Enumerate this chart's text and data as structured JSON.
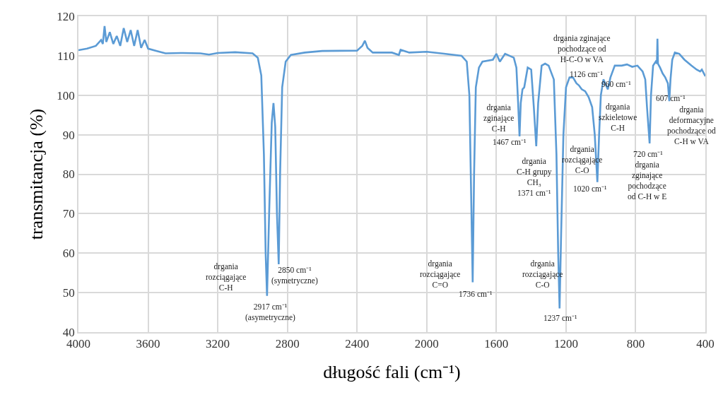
{
  "chart_data": {
    "type": "line",
    "xlabel": "długość fali (cm⁻¹)",
    "ylabel": "transmitancja (%)",
    "xlim": [
      4000,
      400
    ],
    "xticks": [
      4000,
      3600,
      3200,
      2800,
      2400,
      2000,
      1600,
      1200,
      800,
      400
    ],
    "ylim": [
      40,
      120
    ],
    "yticks": [
      40,
      50,
      60,
      70,
      80,
      90,
      100,
      110,
      120
    ],
    "grid": true,
    "series": [
      {
        "color": "#5b9bd5",
        "x": [
          4000,
          3950,
          3900,
          3870,
          3860,
          3850,
          3840,
          3820,
          3800,
          3780,
          3760,
          3740,
          3720,
          3700,
          3680,
          3660,
          3640,
          3620,
          3600,
          3550,
          3500,
          3400,
          3300,
          3250,
          3200,
          3100,
          3000,
          2970,
          2950,
          2935,
          2925,
          2917,
          2905,
          2890,
          2880,
          2870,
          2860,
          2850,
          2842,
          2830,
          2810,
          2780,
          2700,
          2600,
          2400,
          2370,
          2355,
          2340,
          2310,
          2200,
          2160,
          2150,
          2100,
          2000,
          1900,
          1800,
          1770,
          1755,
          1745,
          1736,
          1728,
          1718,
          1700,
          1680,
          1620,
          1600,
          1580,
          1550,
          1500,
          1485,
          1475,
          1467,
          1460,
          1450,
          1440,
          1420,
          1400,
          1385,
          1371,
          1360,
          1340,
          1320,
          1300,
          1270,
          1255,
          1245,
          1237,
          1228,
          1215,
          1200,
          1180,
          1160,
          1140,
          1126,
          1110,
          1090,
          1070,
          1050,
          1035,
          1020,
          1010,
          1000,
          985,
          970,
          960,
          945,
          920,
          880,
          850,
          820,
          790,
          760,
          745,
          735,
          720,
          712,
          700,
          685,
          678,
          675,
          672,
          660,
          645,
          630,
          615,
          607,
          600,
          590,
          575,
          550,
          520,
          480,
          450,
          430,
          420,
          400
        ],
        "values": [
          111.4,
          111.8,
          112.5,
          114,
          113,
          117.5,
          113.5,
          116,
          113,
          115,
          112.5,
          117,
          113.5,
          116.5,
          112.5,
          116.5,
          112,
          114,
          111.8,
          111.2,
          110.6,
          110.7,
          110.6,
          110.3,
          110.7,
          110.9,
          110.6,
          109.5,
          105,
          85,
          60,
          49.2,
          70,
          93,
          98,
          92,
          70,
          57.2,
          80,
          102,
          108.5,
          110.2,
          110.8,
          111.2,
          111.3,
          112.5,
          113.8,
          112,
          110.8,
          110.8,
          110.2,
          111.5,
          110.8,
          111,
          110.5,
          110,
          108.5,
          100,
          75,
          52.6,
          80,
          102,
          107,
          108.5,
          109,
          110.5,
          108.5,
          110.5,
          109.5,
          107,
          98,
          89.6,
          98,
          101.5,
          102,
          107,
          106.5,
          97,
          87.1,
          98,
          107.5,
          108,
          107.5,
          104,
          85,
          60,
          46,
          65,
          90,
          102,
          104.5,
          104.5,
          103,
          102.5,
          101.5,
          101,
          99.5,
          97,
          90,
          78,
          90,
          100,
          104,
          102.5,
          101.5,
          104.5,
          107.5,
          107.5,
          107.8,
          107.2,
          107.5,
          106,
          104,
          97,
          87.8,
          100,
          107.5,
          108.5,
          108,
          114.3,
          108,
          107,
          105.5,
          104.5,
          103,
          98.5,
          104,
          109,
          110.8,
          110.5,
          109,
          107.5,
          106.5,
          106,
          106.5,
          104.8
        ]
      }
    ],
    "annotations": [
      {
        "text": "drgania\nrozciągające\nC-H",
        "x": 2917,
        "y": 49.2
      },
      {
        "text": "2917 cm⁻¹\n(asymetryczne)",
        "x": 2917,
        "y": 49.2
      },
      {
        "text": "2850 cm⁻¹\n(symetryczne)",
        "x": 2850,
        "y": 57.2
      },
      {
        "text": "drgania\nrozciągające\nC=O",
        "x": 1736,
        "y": 52.6
      },
      {
        "text": "1736 cm⁻¹",
        "x": 1736,
        "y": 52.6
      },
      {
        "text": "drgania\nzginające\nC-H",
        "x": 1467,
        "y": 89.6
      },
      {
        "text": "1467 cm⁻¹",
        "x": 1467,
        "y": 89.6
      },
      {
        "text": "drgania\nC-H grupy\nCH₃\n1371 cm⁻¹",
        "x": 1371,
        "y": 87.1
      },
      {
        "text": "drgania zginające\npochodzące od\nH-C-O w VA",
        "x": 1126,
        "y": 102.5
      },
      {
        "text": "1126 cm⁻¹",
        "x": 1126,
        "y": 102.5
      },
      {
        "text": "drgania\nrozciągające\nC-O",
        "x": 1237,
        "y": 46
      },
      {
        "text": "1237 cm⁻¹",
        "x": 1237,
        "y": 46
      },
      {
        "text": "drgania\nrozciągające\nC-O",
        "x": 1020,
        "y": 78
      },
      {
        "text": "1020 cm⁻¹",
        "x": 1020,
        "y": 78
      },
      {
        "text": "960 cm⁻¹",
        "x": 960,
        "y": 101.5
      },
      {
        "text": "drgania\nszkieletowe\nC-H",
        "x": 960,
        "y": 101.5
      },
      {
        "text": "720 cm⁻¹",
        "x": 720,
        "y": 87.8
      },
      {
        "text": "drgania\nzginające\npochodzące\nod C-H w E",
        "x": 720,
        "y": 87.8
      },
      {
        "text": "607 cm⁻¹",
        "x": 607,
        "y": 98.5
      },
      {
        "text": "drgania\ndeformacyjne\npochodzące od\nC-H w VA",
        "x": 607,
        "y": 98.5
      }
    ]
  }
}
